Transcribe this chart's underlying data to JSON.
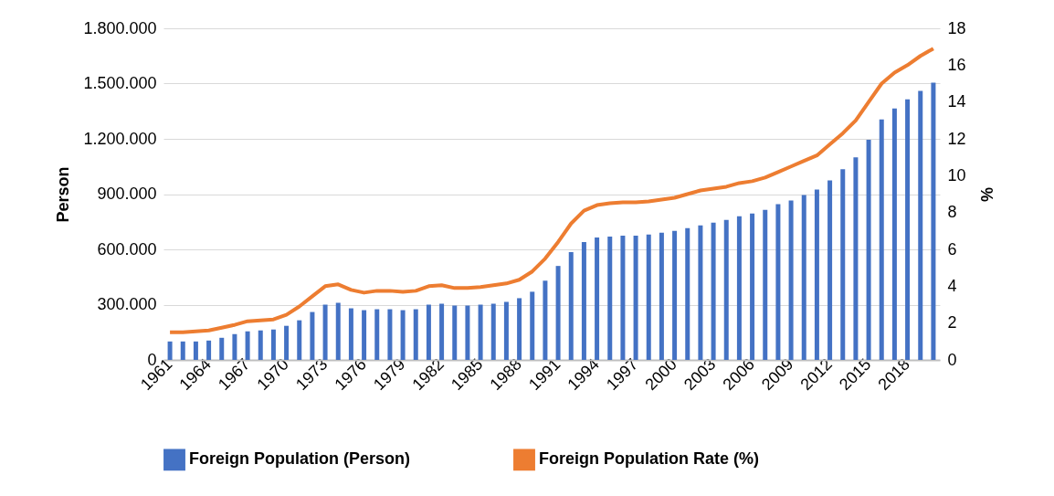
{
  "chart_data": {
    "type": "bar",
    "ylabel": "Person",
    "y2label": "%",
    "categories": [
      "1961",
      null,
      null,
      "1964",
      null,
      null,
      "1967",
      null,
      null,
      "1970",
      null,
      null,
      "1973",
      null,
      null,
      "1976",
      null,
      null,
      "1979",
      null,
      null,
      "1982",
      null,
      null,
      "1985",
      null,
      null,
      "1988",
      null,
      null,
      "1991",
      null,
      null,
      "1994",
      null,
      null,
      "1997",
      null,
      null,
      "2000",
      null,
      null,
      "2003",
      null,
      null,
      "2006",
      null,
      null,
      "2009",
      null,
      null,
      "2012",
      null,
      null,
      "2015",
      null,
      null,
      "2018",
      null,
      null
    ],
    "series": [
      {
        "name": "Foreign Population (Person)",
        "type": "bar",
        "color": "#4472c4",
        "values": [
          100000,
          100000,
          100000,
          105000,
          120000,
          140000,
          155000,
          160000,
          165000,
          185000,
          215000,
          260000,
          300000,
          310000,
          280000,
          270000,
          275000,
          275000,
          270000,
          275000,
          300000,
          305000,
          295000,
          295000,
          300000,
          305000,
          315000,
          335000,
          370000,
          430000,
          510000,
          585000,
          640000,
          665000,
          670000,
          675000,
          675000,
          680000,
          690000,
          700000,
          715000,
          730000,
          745000,
          760000,
          780000,
          795000,
          815000,
          845000,
          865000,
          895000,
          925000,
          975000,
          1035000,
          1100000,
          1195000,
          1305000,
          1365000,
          1415000,
          1460000,
          1505000
        ]
      },
      {
        "name": "Foreign Population Rate (%)",
        "type": "line",
        "axis": "y2",
        "color": "#ed7d31",
        "values": [
          1.5,
          1.5,
          1.55,
          1.6,
          1.75,
          1.9,
          2.1,
          2.15,
          2.2,
          2.45,
          2.9,
          3.45,
          4.0,
          4.1,
          3.8,
          3.65,
          3.75,
          3.75,
          3.7,
          3.75,
          4.0,
          4.05,
          3.9,
          3.9,
          3.95,
          4.05,
          4.15,
          4.35,
          4.8,
          5.5,
          6.4,
          7.4,
          8.1,
          8.4,
          8.5,
          8.55,
          8.55,
          8.6,
          8.7,
          8.8,
          9.0,
          9.2,
          9.3,
          9.4,
          9.6,
          9.7,
          9.9,
          10.2,
          10.5,
          10.8,
          11.1,
          11.7,
          12.3,
          13.0,
          14.0,
          15.0,
          15.6,
          16.0,
          16.5,
          16.9
        ]
      }
    ],
    "ylim": [
      0,
      1800000
    ],
    "yticks": [
      0,
      {
        "value": 300000,
        "label": "300.000"
      },
      {
        "value": 600000,
        "label": "600.000"
      },
      {
        "value": 900000,
        "label": "900.000"
      },
      {
        "value": 1200000,
        "label": "1.200.000"
      },
      {
        "value": 1500000,
        "label": "1.500.000"
      },
      {
        "value": 1800000,
        "label": "1.800.000"
      }
    ],
    "y2lim": [
      0,
      18
    ],
    "y2ticks": [
      0,
      2,
      4,
      6,
      8,
      10,
      12,
      14,
      16,
      18
    ],
    "grid": "y",
    "legend": "bottom"
  }
}
